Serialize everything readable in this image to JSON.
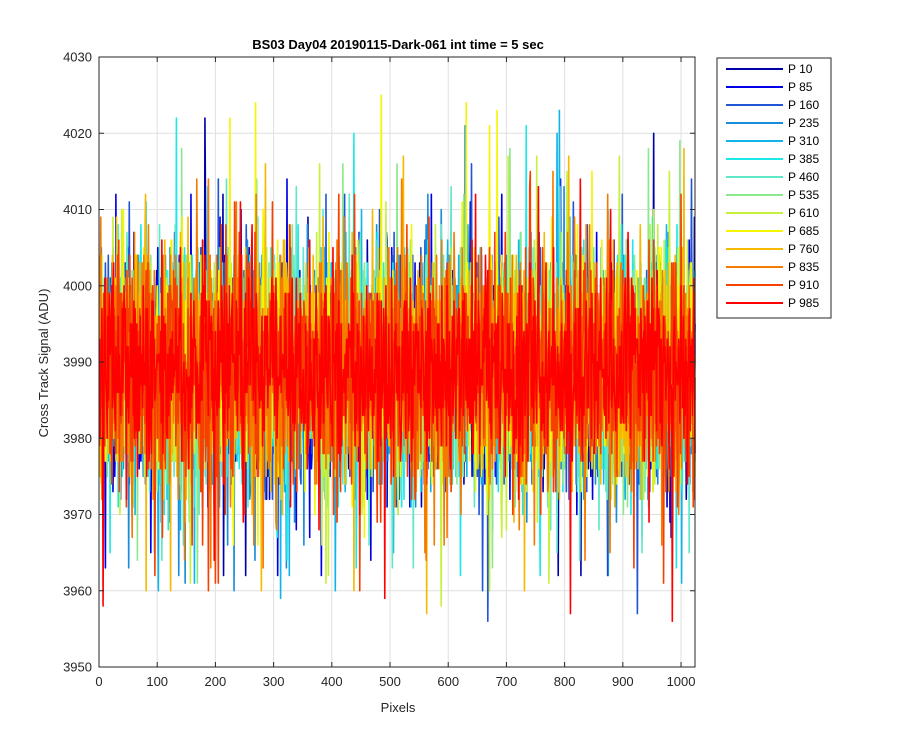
{
  "chart_data": {
    "type": "line",
    "title": "BS03 Day04 20190115-Dark-061 int time = 5 sec",
    "xlabel": "Pixels",
    "ylabel": "Cross Track Signal (ADU)",
    "xlim": [
      0,
      1024
    ],
    "ylim": [
      3950,
      4030
    ],
    "xticks": [
      0,
      100,
      200,
      300,
      400,
      500,
      600,
      700,
      800,
      900,
      1000
    ],
    "yticks": [
      3950,
      3960,
      3970,
      3980,
      3990,
      4000,
      4010,
      4020,
      4030
    ],
    "grid": true,
    "legend_position": "outside-top-right",
    "x": {
      "start": 1,
      "end": 1024,
      "step": 1
    },
    "series": [
      {
        "name": "P 10",
        "color": "#0000aa",
        "mean": 3989,
        "spread": 7.5,
        "min": 3961,
        "max": 4023
      },
      {
        "name": "P 85",
        "color": "#0000e6",
        "mean": 3989,
        "spread": 7.5,
        "min": 3962,
        "max": 4017
      },
      {
        "name": "P 160",
        "color": "#1f55d6",
        "mean": 3989,
        "spread": 7.5,
        "min": 3956,
        "max": 4016
      },
      {
        "name": "P 235",
        "color": "#178ddb",
        "mean": 3989,
        "spread": 7.5,
        "min": 3960,
        "max": 4021
      },
      {
        "name": "P 310",
        "color": "#10b4e8",
        "mean": 3989,
        "spread": 7.5,
        "min": 3958,
        "max": 4023
      },
      {
        "name": "P 385",
        "color": "#1de8e8",
        "mean": 3989,
        "spread": 7.5,
        "min": 3961,
        "max": 4022
      },
      {
        "name": "P 460",
        "color": "#5fe8c8",
        "mean": 3989,
        "spread": 7.5,
        "min": 3962,
        "max": 4015
      },
      {
        "name": "P 535",
        "color": "#8ce88c",
        "mean": 3989,
        "spread": 7.5,
        "min": 3960,
        "max": 4019
      },
      {
        "name": "P 610",
        "color": "#c6f03c",
        "mean": 3989,
        "spread": 7.5,
        "min": 3958,
        "max": 4018
      },
      {
        "name": "P 685",
        "color": "#f5f500",
        "mean": 3989,
        "spread": 7.5,
        "min": 3962,
        "max": 4025
      },
      {
        "name": "P 760",
        "color": "#f5b900",
        "mean": 3989,
        "spread": 7.5,
        "min": 3957,
        "max": 4019
      },
      {
        "name": "P 835",
        "color": "#f57a00",
        "mean": 3989,
        "spread": 7.5,
        "min": 3963,
        "max": 4016
      },
      {
        "name": "P 910",
        "color": "#f54000",
        "mean": 3989,
        "spread": 7.5,
        "min": 3960,
        "max": 4015
      },
      {
        "name": "P 985",
        "color": "#ff0000",
        "mean": 3989,
        "spread": 6.5,
        "min": 3955,
        "max": 4014
      }
    ]
  }
}
